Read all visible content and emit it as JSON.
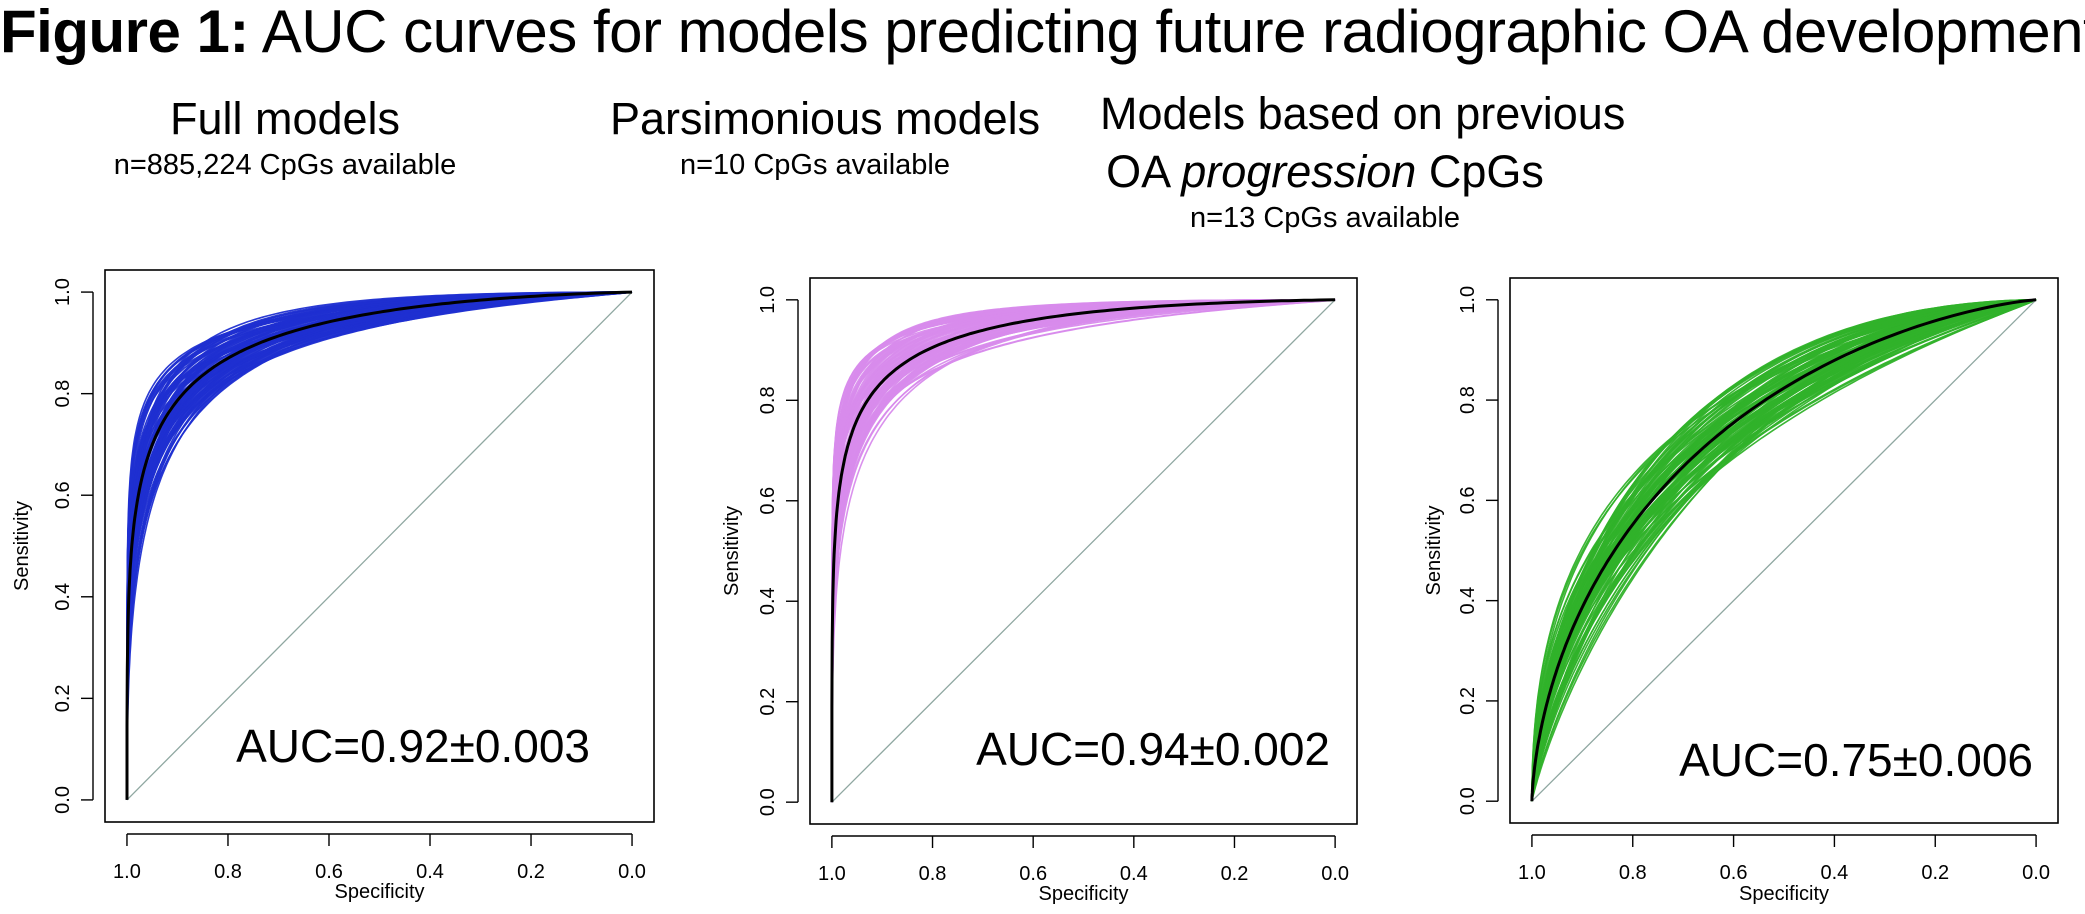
{
  "figure": {
    "label": "Figure 1:",
    "title": "AUC curves for models predicting future radiographic OA development"
  },
  "colors": {
    "blue": "#1f2fd1",
    "violet": "#d88bec",
    "green": "#30b22a",
    "mean": "#000000",
    "diagonal": "#8fa7a1"
  },
  "chart_data": [
    {
      "type": "line",
      "title": "Full models",
      "subtitle": "n=885,224 CpGs available",
      "xlabel": "Specificity",
      "ylabel": "Sensitivity",
      "xlim": [
        1.0,
        0.0
      ],
      "ylim": [
        0.0,
        1.0
      ],
      "xticks": [
        "1.0",
        "0.8",
        "0.6",
        "0.4",
        "0.2",
        "0.0"
      ],
      "yticks": [
        "0.0",
        "0.2",
        "0.4",
        "0.6",
        "0.8",
        "1.0"
      ],
      "annotation": "AUC=0.92±0.003",
      "auc_mean": 0.92,
      "auc_sd": 0.003,
      "series_color": "blue",
      "n_resamples": 100,
      "series": [
        {
          "name": "resampled ROC curves",
          "count": 100
        },
        {
          "name": "mean ROC curve"
        },
        {
          "name": "chance diagonal",
          "x": [
            1.0,
            0.0
          ],
          "y": [
            0.0,
            1.0
          ]
        }
      ]
    },
    {
      "type": "line",
      "title": "Parsimonious models",
      "subtitle": "n=10 CpGs available",
      "xlabel": "Specificity",
      "ylabel": "Sensitivity",
      "xlim": [
        1.0,
        0.0
      ],
      "ylim": [
        0.0,
        1.0
      ],
      "xticks": [
        "1.0",
        "0.8",
        "0.6",
        "0.4",
        "0.2",
        "0.0"
      ],
      "yticks": [
        "0.0",
        "0.2",
        "0.4",
        "0.6",
        "0.8",
        "1.0"
      ],
      "annotation": "AUC=0.94±0.002",
      "auc_mean": 0.94,
      "auc_sd": 0.002,
      "series_color": "violet",
      "n_resamples": 100,
      "series": [
        {
          "name": "resampled ROC curves",
          "count": 100
        },
        {
          "name": "mean ROC curve"
        },
        {
          "name": "chance diagonal",
          "x": [
            1.0,
            0.0
          ],
          "y": [
            0.0,
            1.0
          ]
        }
      ]
    },
    {
      "type": "line",
      "title": "Models based on previous",
      "title_line2_prefix": "OA ",
      "title_line2_italic": "progression",
      "title_line2_suffix": " CpGs",
      "subtitle": "n=13 CpGs available",
      "xlabel": "Specificity",
      "ylabel": "Sensitivity",
      "xlim": [
        1.0,
        0.0
      ],
      "ylim": [
        0.0,
        1.0
      ],
      "xticks": [
        "1.0",
        "0.8",
        "0.6",
        "0.4",
        "0.2",
        "0.0"
      ],
      "yticks": [
        "0.0",
        "0.2",
        "0.4",
        "0.6",
        "0.8",
        "1.0"
      ],
      "annotation": "AUC=0.75±0.006",
      "auc_mean": 0.75,
      "auc_sd": 0.006,
      "series_color": "green",
      "n_resamples": 100,
      "series": [
        {
          "name": "resampled ROC curves",
          "count": 100
        },
        {
          "name": "mean ROC curve"
        },
        {
          "name": "chance diagonal",
          "x": [
            1.0,
            0.0
          ],
          "y": [
            0.0,
            1.0
          ]
        }
      ]
    }
  ]
}
